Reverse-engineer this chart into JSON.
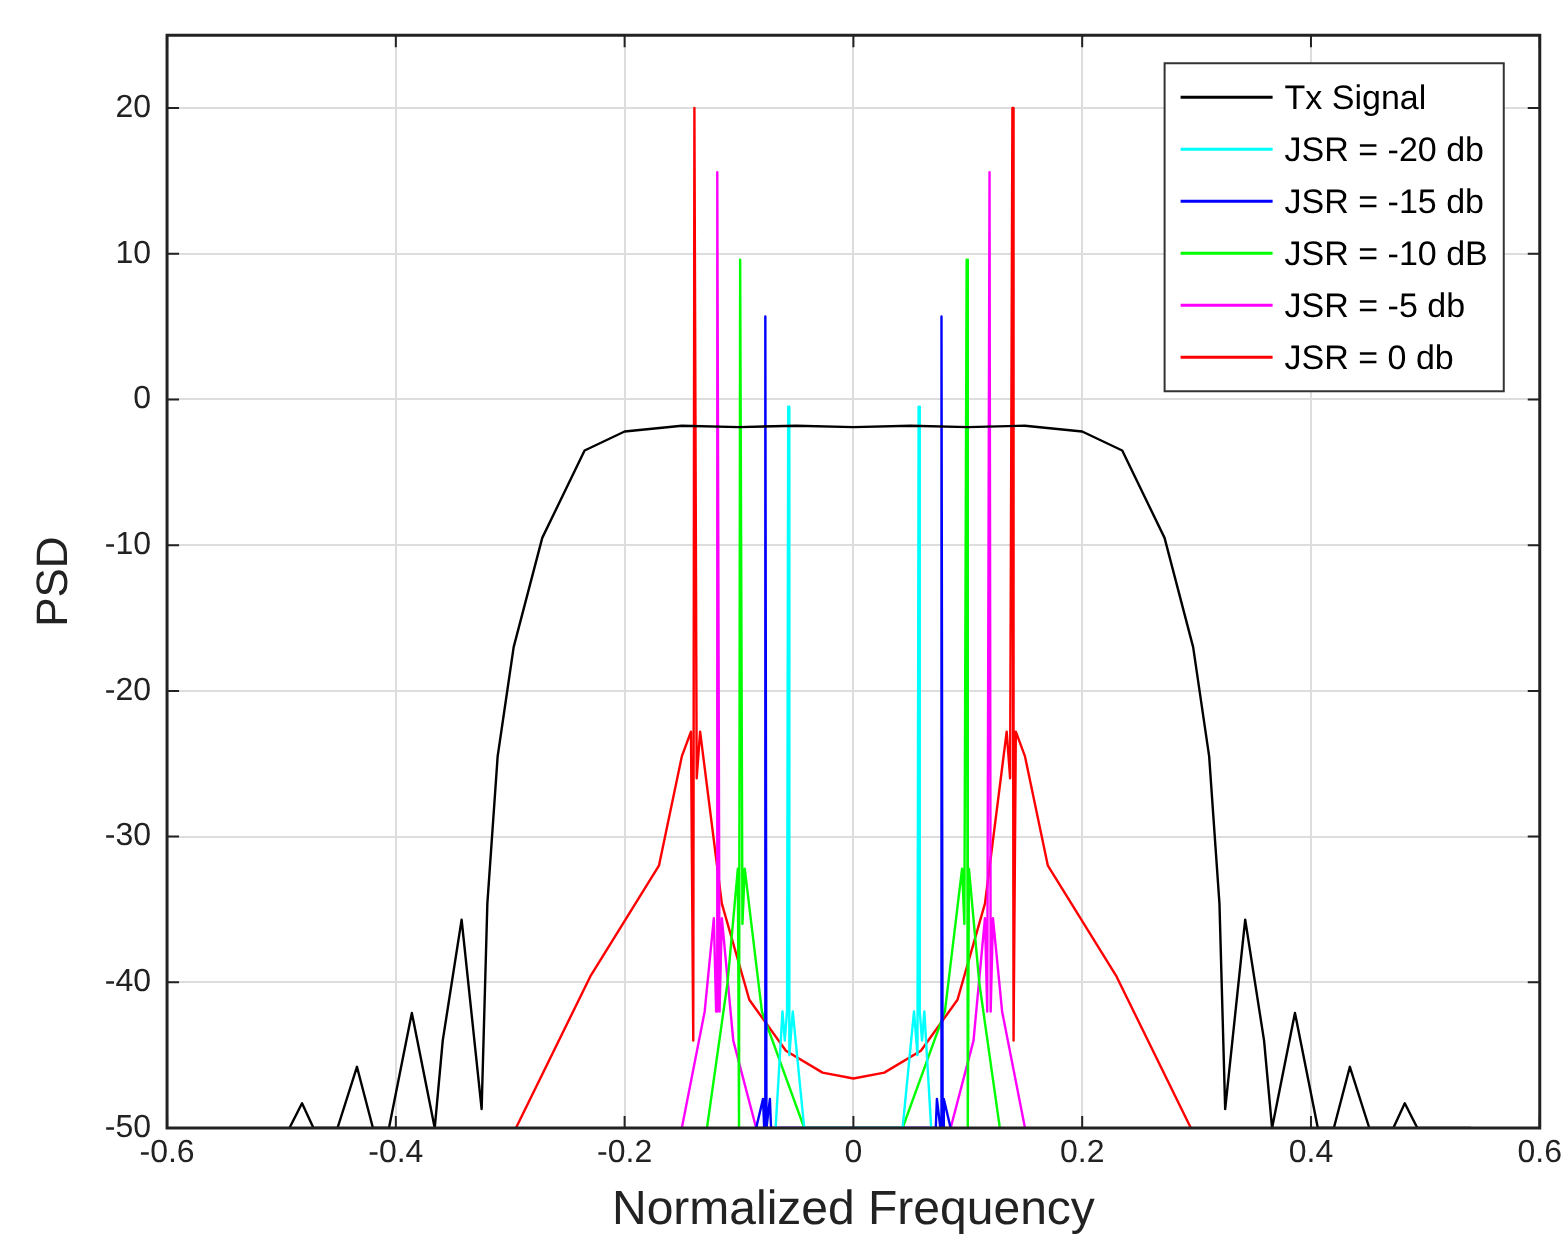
{
  "chart_data": {
    "type": "line",
    "xlabel": "Normalized Frequency",
    "ylabel": "PSD",
    "xlim": [
      -0.6,
      0.6
    ],
    "xticks": [
      -0.6,
      -0.4,
      -0.2,
      0,
      0.2,
      0.4,
      0.6
    ],
    "ylim": [
      -50,
      25
    ],
    "yticks": [
      -50,
      -40,
      -30,
      -20,
      -10,
      0,
      10,
      20
    ],
    "grid": true,
    "legend": "top right",
    "marker": "none",
    "line_style": "solid",
    "series": [
      {
        "name": "Tx Signal",
        "color": "#000000",
        "x": [
          -0.493,
          -0.482,
          -0.472,
          -0.451,
          -0.434,
          -0.42,
          -0.406,
          -0.386,
          -0.366,
          -0.359,
          -0.3425,
          -0.325,
          -0.32,
          -0.311,
          -0.297,
          -0.272,
          -0.235,
          -0.2,
          -0.15,
          -0.1,
          -0.05,
          0,
          0.05,
          0.1,
          0.15,
          0.2,
          0.235,
          0.272,
          0.297,
          0.311,
          0.32,
          0.325,
          0.3425,
          0.359,
          0.366,
          0.386,
          0.406,
          0.42,
          0.434,
          0.451,
          0.472,
          0.482,
          0.493,
          0.54
        ],
        "values": [
          -50,
          -48.3,
          -50,
          -50,
          -45.8,
          -50,
          -50,
          -42.1,
          -50,
          -44,
          -35.7,
          -48.7,
          -34.6,
          -24.5,
          -17,
          -9.5,
          -3.5,
          -2.2,
          -1.8,
          -1.9,
          -1.8,
          -1.9,
          -1.8,
          -1.9,
          -1.8,
          -2.2,
          -3.5,
          -9.5,
          -17,
          -24.5,
          -34.6,
          -48.7,
          -35.7,
          -44,
          -50,
          -42.1,
          -50,
          -50,
          -45.8,
          -50,
          -50,
          -48.3,
          -50,
          -50
        ]
      },
      {
        "name": "JSR = -20 db",
        "color": "#00ffff",
        "x": [
          -0.068,
          -0.062,
          -0.06,
          -0.058,
          -0.057,
          -0.056,
          -0.053,
          -0.043,
          0.043,
          0.053,
          0.056,
          0.057,
          0.058,
          0.06,
          0.062,
          0.068
        ],
        "values": [
          -50,
          -42,
          -44,
          -42,
          -0.5,
          -45,
          -42,
          -50,
          -50,
          -42,
          -45,
          -0.5,
          -42,
          -44,
          -42,
          -50
        ]
      },
      {
        "name": "JSR = -15 db",
        "color": "#0000ff",
        "x": [
          -0.085,
          -0.079,
          -0.078,
          -0.077,
          -0.076,
          -0.073,
          -0.072,
          0.072,
          0.073,
          0.076,
          0.077,
          0.078,
          0.079,
          0.085
        ],
        "values": [
          -50,
          -48,
          -50,
          5.7,
          -50,
          -48,
          -50,
          -50,
          -48,
          -50,
          5.7,
          -50,
          -48,
          -50
        ]
      },
      {
        "name": "JSR = -10 dB",
        "color": "#00ff00",
        "x": [
          -0.128,
          -0.11,
          -0.101,
          -0.1,
          -0.099,
          -0.097,
          -0.095,
          -0.08,
          -0.043,
          0.043,
          0.08,
          0.095,
          0.097,
          0.099,
          0.1,
          0.101,
          0.11,
          0.128
        ],
        "values": [
          -50,
          -40,
          -32.2,
          -50,
          9.6,
          -36,
          -32.2,
          -42,
          -50,
          -50,
          -42,
          -32.2,
          -36,
          9.6,
          -50,
          -32.2,
          -40,
          -50
        ]
      },
      {
        "name": "JSR = -5 db",
        "color": "#ff00ff",
        "x": [
          -0.15,
          -0.13,
          -0.122,
          -0.12,
          -0.119,
          -0.117,
          -0.115,
          -0.105,
          -0.085,
          0.085,
          0.105,
          0.115,
          0.117,
          0.119,
          0.12,
          0.122,
          0.13,
          0.15
        ],
        "values": [
          -50,
          -42,
          -35.6,
          -42,
          15.6,
          -42,
          -35.6,
          -44,
          -50,
          -50,
          -44,
          -35.6,
          -42,
          15.6,
          -42,
          -35.6,
          -42,
          -50
        ]
      },
      {
        "name": "JSR = 0 db",
        "color": "#ff0000",
        "x": [
          -0.295,
          -0.23,
          -0.17,
          -0.15,
          -0.142,
          -0.14,
          -0.139,
          -0.137,
          -0.134,
          -0.115,
          -0.091,
          -0.059,
          -0.027,
          0,
          0.027,
          0.059,
          0.091,
          0.115,
          0.134,
          0.137,
          0.139,
          0.14,
          0.142,
          0.15,
          0.17,
          0.23,
          0.295
        ],
        "values": [
          -50,
          -39.6,
          -32,
          -24.5,
          -22.8,
          -44,
          20,
          -26,
          -22.8,
          -34.6,
          -41.2,
          -44.7,
          -46.2,
          -46.6,
          -46.2,
          -44.7,
          -41.2,
          -34.6,
          -22.8,
          -26,
          20,
          -44,
          -22.8,
          -24.5,
          -32,
          -39.6,
          -50
        ]
      }
    ]
  }
}
